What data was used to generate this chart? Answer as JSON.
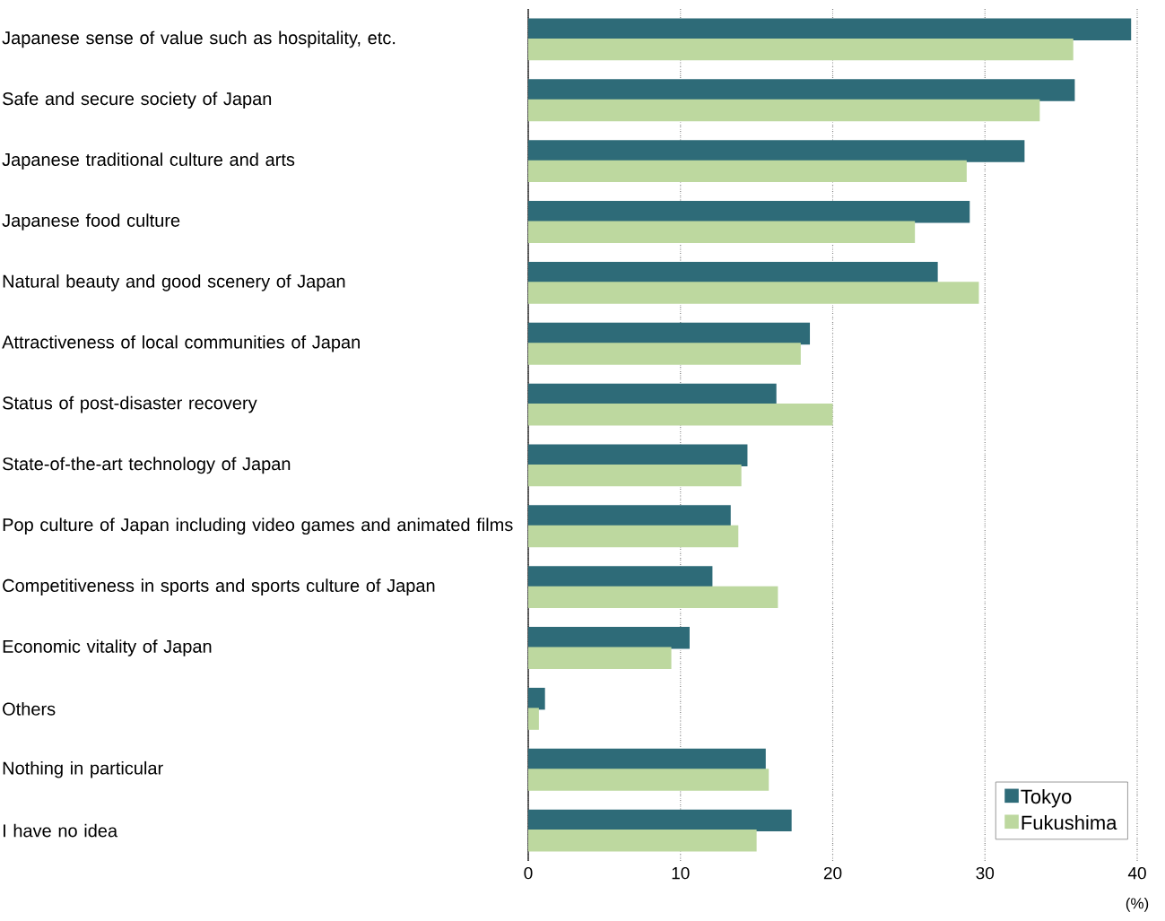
{
  "chart_data": {
    "type": "bar",
    "orientation": "horizontal",
    "xlabel": "(%)",
    "categories": [
      "Japanese sense of value such as hospitality, etc.",
      "Safe and secure society of Japan",
      "Japanese traditional culture and arts",
      "Japanese food culture",
      "Natural beauty and good scenery of Japan",
      "Attractiveness of local communities of Japan",
      "Status of post-disaster recovery",
      "State-of-the-art technology of Japan",
      "Pop culture of Japan including video games and animated films",
      "Competitiveness in sports and sports culture of Japan",
      "Economic vitality of Japan",
      "Others",
      "Nothing in particular",
      "I have no idea"
    ],
    "series": [
      {
        "name": "Tokyo",
        "color": "#2e6b78",
        "values": [
          39.6,
          35.9,
          32.6,
          29.0,
          26.9,
          18.5,
          16.3,
          14.4,
          13.3,
          12.1,
          10.6,
          1.1,
          15.6,
          17.3
        ]
      },
      {
        "name": "Fukushima",
        "color": "#bdd89f",
        "values": [
          35.8,
          33.6,
          28.8,
          25.4,
          29.6,
          17.9,
          20.0,
          14.0,
          13.8,
          16.4,
          9.4,
          0.7,
          15.8,
          15.0
        ]
      }
    ],
    "xlim": [
      0,
      40
    ],
    "xticks": [
      0,
      10,
      20,
      30,
      40
    ],
    "grid": "x",
    "legend": "bottom right"
  }
}
